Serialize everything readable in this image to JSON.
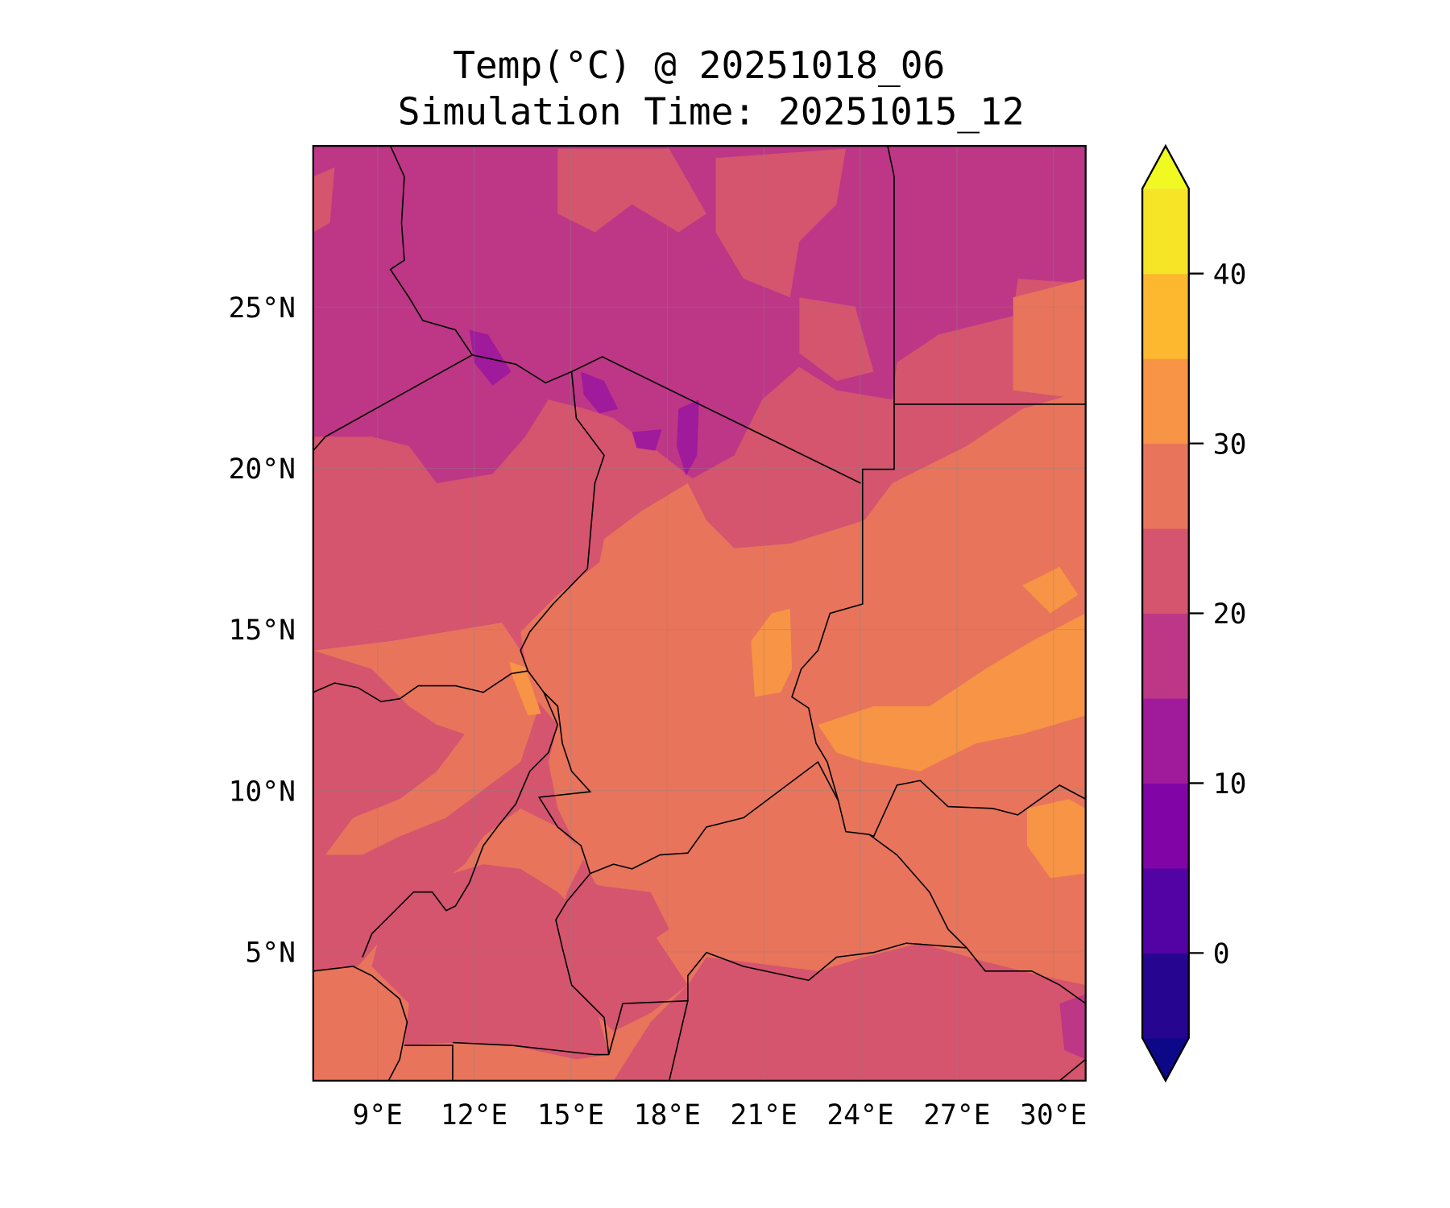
{
  "chart_data": {
    "type": "heatmap",
    "title": "Temp(°C) @ 20251018_06",
    "subtitle": "Simulation Time: 20251015_12",
    "xlabel": "",
    "ylabel": "",
    "xlim": [
      7,
      31
    ],
    "ylim": [
      1,
      30
    ],
    "x_ticks": [
      {
        "value": 9,
        "label": "9°E"
      },
      {
        "value": 12,
        "label": "12°E"
      },
      {
        "value": 15,
        "label": "15°E"
      },
      {
        "value": 18,
        "label": "18°E"
      },
      {
        "value": 21,
        "label": "21°E"
      },
      {
        "value": 24,
        "label": "24°E"
      },
      {
        "value": 27,
        "label": "27°E"
      },
      {
        "value": 30,
        "label": "30°E"
      }
    ],
    "y_ticks": [
      {
        "value": 5,
        "label": "5°N"
      },
      {
        "value": 10,
        "label": "10°N"
      },
      {
        "value": 15,
        "label": "15°N"
      },
      {
        "value": 20,
        "label": "20°N"
      },
      {
        "value": 25,
        "label": "25°N"
      }
    ],
    "grid": true,
    "colorbar": {
      "levels": [
        -5,
        0,
        5,
        10,
        15,
        20,
        25,
        30,
        35,
        40,
        45
      ],
      "colors": [
        "#260591",
        "#5302a3",
        "#8104a7",
        "#a01a9c",
        "#bd3786",
        "#d5546e",
        "#e8745c",
        "#f79445",
        "#fdb82f",
        "#f6e426"
      ],
      "under_color": "#0d0887",
      "over_color": "#f0f921",
      "extend": "both",
      "tick_labels": [
        {
          "value": 0,
          "label": "0"
        },
        {
          "value": 10,
          "label": "10"
        },
        {
          "value": 20,
          "label": "20"
        },
        {
          "value": 30,
          "label": "30"
        },
        {
          "value": 40,
          "label": "40"
        }
      ]
    }
  }
}
